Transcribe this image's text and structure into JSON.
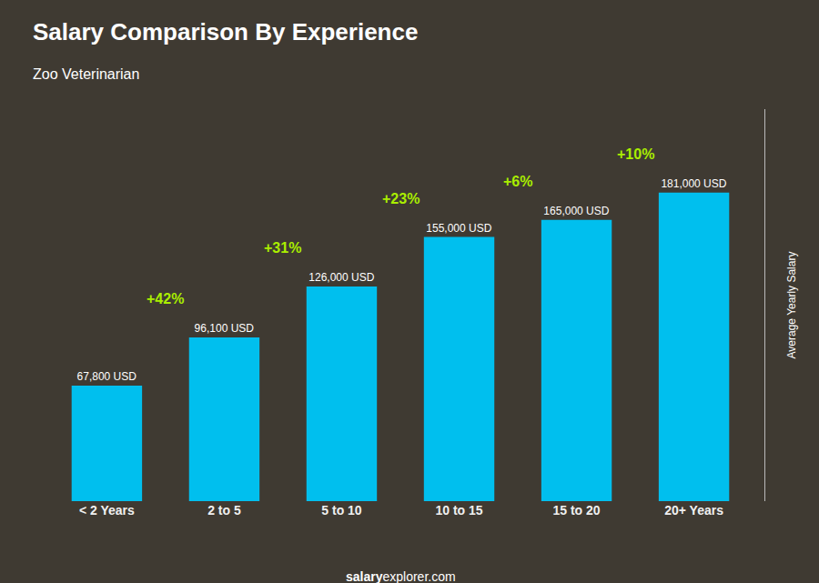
{
  "chart_data": {
    "type": "bar",
    "title": "Salary Comparison By Experience",
    "subtitle": "Zoo Veterinarian",
    "ylabel": "Average Yearly Salary",
    "categories": [
      "< 2 Years",
      "2 to 5",
      "5 to 10",
      "10 to 15",
      "15 to 20",
      "20+ Years"
    ],
    "values": [
      67800,
      96100,
      126000,
      155000,
      165000,
      181000
    ],
    "value_labels": [
      "67,800 USD",
      "96,100 USD",
      "126,000 USD",
      "155,000 USD",
      "165,000 USD",
      "181,000 USD"
    ],
    "data_labels": true,
    "color": "#00BFEE",
    "ylim": [
      0,
      230000
    ],
    "yticks": [],
    "tick_labels": "x",
    "grid": false,
    "annotations": [
      {
        "text": "+42%",
        "color": "#AAEE00"
      },
      {
        "text": "+31%",
        "color": "#AAEE00"
      },
      {
        "text": "+23%",
        "color": "#AAEE00"
      },
      {
        "text": "+6%",
        "color": "#AAEE00"
      },
      {
        "text": "+10%",
        "color": "#AAEE00"
      }
    ],
    "footer": [
      "salary",
      "explorer.com"
    ]
  }
}
